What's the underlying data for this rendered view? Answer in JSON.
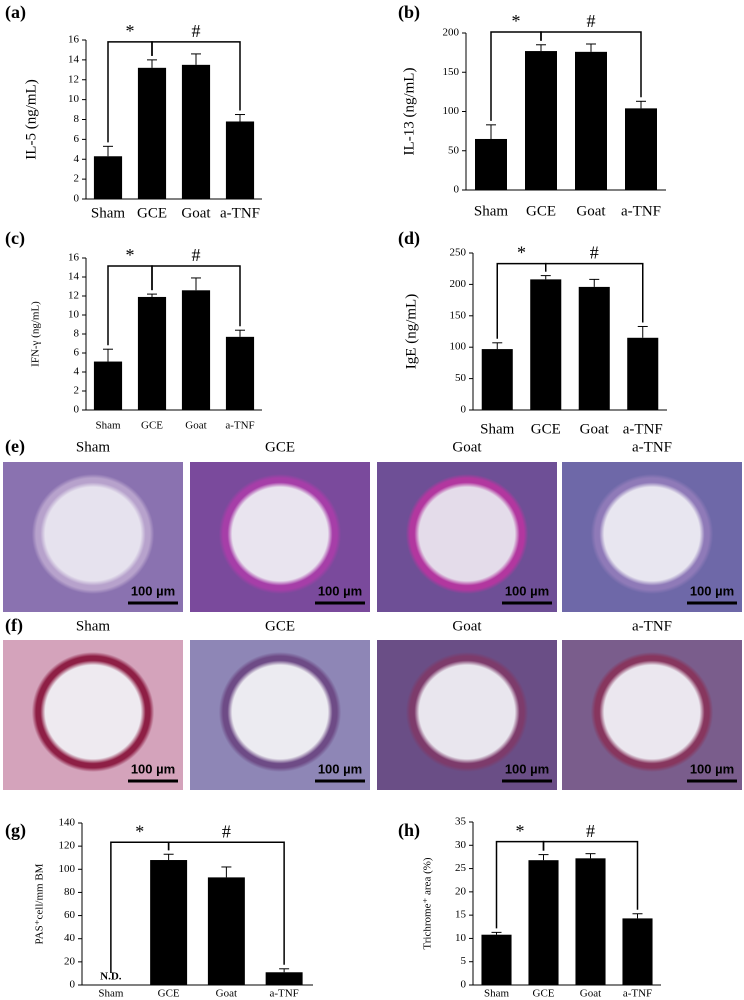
{
  "chart_data": [
    {
      "type": "bar",
      "panel_label": "(a)",
      "ylabel": "IL-5 (ng/mL)",
      "categories": [
        "Sham",
        "GCE",
        "Goat",
        "a-TNF"
      ],
      "values": [
        4.3,
        13.2,
        13.5,
        7.8
      ],
      "errors": [
        1.0,
        0.8,
        1.1,
        0.7
      ],
      "color": "#000000",
      "ylim": [
        0,
        16
      ],
      "yticks": [
        0,
        2,
        4,
        6,
        8,
        10,
        12,
        14,
        16
      ],
      "comparisons": [
        {
          "label": "*",
          "from": 0,
          "to": 1
        },
        {
          "label": "#",
          "from": 1,
          "to": 3
        }
      ]
    },
    {
      "type": "bar",
      "panel_label": "(b)",
      "ylabel": "IL-13 (ng/mL)",
      "categories": [
        "Sham",
        "GCE",
        "Goat",
        "a-TNF"
      ],
      "values": [
        65,
        177,
        176,
        104
      ],
      "errors": [
        18,
        8,
        10,
        9
      ],
      "color": "#000000",
      "ylim": [
        0,
        200
      ],
      "yticks": [
        0,
        50,
        100,
        150,
        200
      ],
      "comparisons": [
        {
          "label": "*",
          "from": 0,
          "to": 1
        },
        {
          "label": "#",
          "from": 1,
          "to": 3
        }
      ]
    },
    {
      "type": "bar",
      "panel_label": "(c)",
      "ylabel": "IFN-γ (ng/mL)",
      "categories": [
        "Sham",
        "GCE",
        "Goat",
        "a-TNF"
      ],
      "values": [
        5.1,
        11.9,
        12.6,
        7.7
      ],
      "errors": [
        1.3,
        0.3,
        1.3,
        0.7
      ],
      "color": "#000000",
      "ylim": [
        0,
        16
      ],
      "yticks": [
        0,
        2,
        4,
        6,
        8,
        10,
        12,
        14,
        16
      ],
      "comparisons": [
        {
          "label": "*",
          "from": 0,
          "to": 1
        },
        {
          "label": "#",
          "from": 1,
          "to": 3
        }
      ]
    },
    {
      "type": "bar",
      "panel_label": "(d)",
      "ylabel": "IgE (ng/mL)",
      "categories": [
        "Sham",
        "GCE",
        "Goat",
        "a-TNF"
      ],
      "values": [
        97,
        208,
        196,
        115
      ],
      "errors": [
        10,
        6,
        12,
        18
      ],
      "color": "#000000",
      "ylim": [
        0,
        250
      ],
      "yticks": [
        0,
        50,
        100,
        150,
        200,
        250
      ],
      "comparisons": [
        {
          "label": "*",
          "from": 0,
          "to": 1
        },
        {
          "label": "#",
          "from": 1,
          "to": 3
        }
      ]
    },
    {
      "type": "bar",
      "panel_label": "(g)",
      "ylabel": "PAS⁺cell/mm BM",
      "categories": [
        "Sham",
        "GCE",
        "Goat",
        "a-TNF"
      ],
      "values": [
        null,
        108,
        93,
        11
      ],
      "errors": [
        null,
        5,
        9,
        3
      ],
      "value_labels": [
        "N.D.",
        null,
        null,
        null
      ],
      "color": "#000000",
      "ylim": [
        0,
        140
      ],
      "yticks": [
        0,
        20,
        40,
        60,
        80,
        100,
        120,
        140
      ],
      "comparisons": [
        {
          "label": "*",
          "from": 0,
          "to": 1
        },
        {
          "label": "#",
          "from": 1,
          "to": 3
        }
      ]
    },
    {
      "type": "bar",
      "panel_label": "(h)",
      "ylabel": "Trichrome⁺ area (%)",
      "categories": [
        "Sham",
        "GCE",
        "Goat",
        "a-TNF"
      ],
      "values": [
        10.8,
        26.8,
        27.2,
        14.3
      ],
      "errors": [
        0.5,
        1.2,
        1.0,
        1.0
      ],
      "color": "#000000",
      "ylim": [
        0,
        35
      ],
      "yticks": [
        0,
        5,
        10,
        15,
        20,
        25,
        30,
        35
      ],
      "comparisons": [
        {
          "label": "*",
          "from": 0,
          "to": 1
        },
        {
          "label": "#",
          "from": 1,
          "to": 3
        }
      ]
    }
  ],
  "image_panels": [
    {
      "label": "(e)",
      "titles": [
        "Sham",
        "GCE",
        "Goat",
        "a-TNF"
      ],
      "scale_bar": "100 µm"
    },
    {
      "label": "(f)",
      "titles": [
        "Sham",
        "GCE",
        "Goat",
        "a-TNF"
      ],
      "scale_bar": "100 µm"
    }
  ]
}
